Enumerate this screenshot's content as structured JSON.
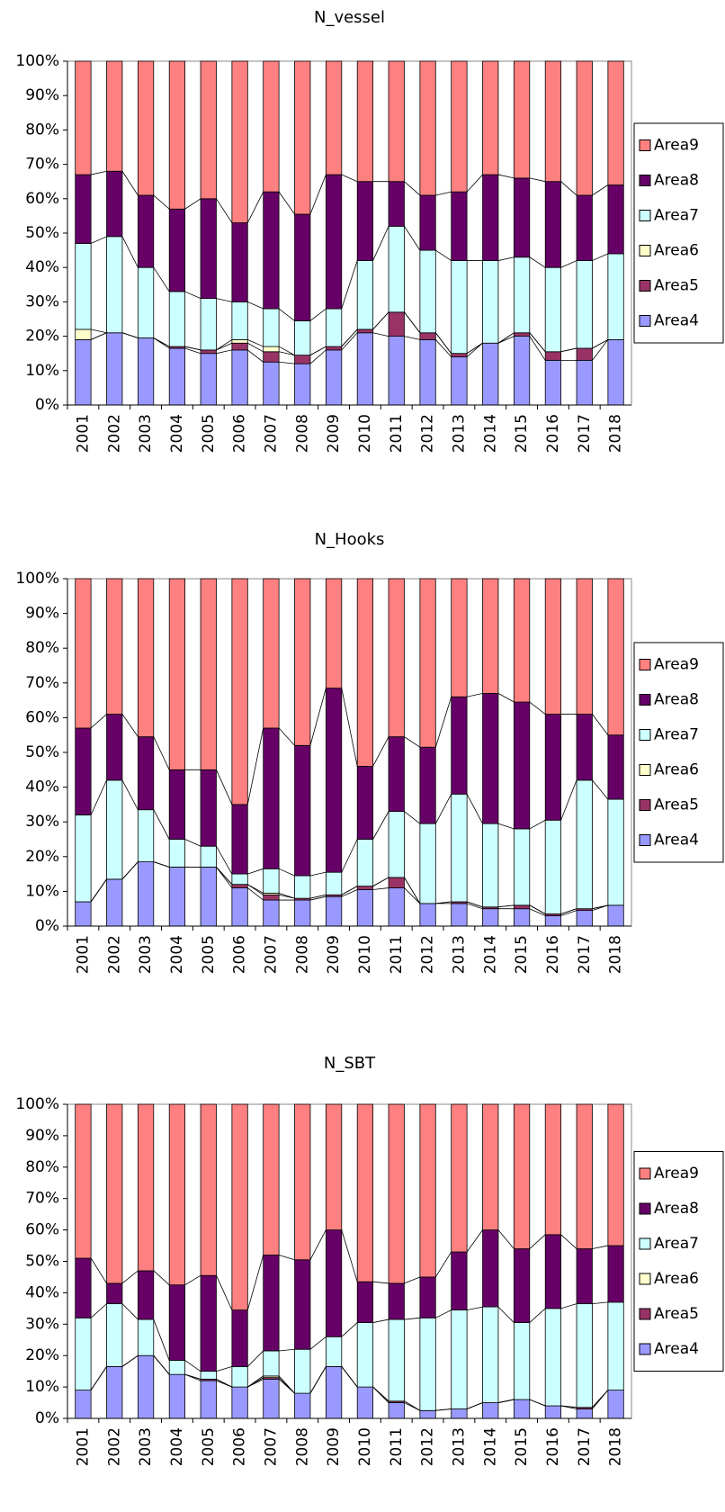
{
  "chart_data": [
    {
      "type": "bar",
      "stacked": true,
      "title": "N_vessel",
      "categories": [
        "2001",
        "2002",
        "2003",
        "2004",
        "2005",
        "2006",
        "2007",
        "2008",
        "2009",
        "2010",
        "2011",
        "2012",
        "2013",
        "2014",
        "2015",
        "2016",
        "2017",
        "2018"
      ],
      "series": [
        {
          "name": "Area4",
          "color": "#9999ff",
          "values": [
            19,
            21,
            19.5,
            16.5,
            15,
            16,
            12.5,
            12,
            16,
            21,
            20,
            19,
            14,
            18,
            20,
            13,
            13,
            19
          ]
        },
        {
          "name": "Area5",
          "color": "#993366",
          "values": [
            0,
            0,
            0,
            0.5,
            1,
            2,
            3,
            2.5,
            1,
            1,
            7,
            2,
            1,
            0,
            1,
            2.5,
            3.5,
            0
          ]
        },
        {
          "name": "Area6",
          "color": "#ffffcc",
          "values": [
            3,
            0,
            0,
            0,
            0,
            1,
            1.5,
            0,
            0,
            0,
            0,
            0,
            0,
            0,
            0,
            0,
            0,
            0
          ]
        },
        {
          "name": "Area7",
          "color": "#ccffff",
          "values": [
            25,
            28,
            20.5,
            16,
            15,
            11,
            11,
            10,
            11,
            20,
            25,
            24,
            27,
            24,
            22,
            24.5,
            25.5,
            25
          ]
        },
        {
          "name": "Area8",
          "color": "#660066",
          "values": [
            20,
            19,
            21,
            24,
            29,
            23,
            34,
            31,
            39,
            23,
            13,
            16,
            20,
            25,
            23,
            25,
            19,
            20
          ]
        },
        {
          "name": "Area9",
          "color": "#ff8080",
          "values": [
            33,
            32,
            39,
            43,
            40,
            47,
            38,
            44.5,
            33,
            35,
            35,
            39,
            38,
            33,
            34,
            35,
            39,
            36
          ]
        }
      ],
      "ylim": [
        0,
        100
      ],
      "yticks": [
        {
          "value": 0,
          "label": "0%"
        },
        {
          "value": 10,
          "label": "10%"
        },
        {
          "value": 20,
          "label": "20%"
        },
        {
          "value": 30,
          "label": "30%"
        },
        {
          "value": 40,
          "label": "40%"
        },
        {
          "value": 50,
          "label": "50%"
        },
        {
          "value": 60,
          "label": "60%"
        },
        {
          "value": 70,
          "label": "70%"
        },
        {
          "value": 80,
          "label": "80%"
        },
        {
          "value": 90,
          "label": "90%"
        },
        {
          "value": 100,
          "label": "100%"
        }
      ]
    },
    {
      "type": "bar",
      "stacked": true,
      "title": "N_Hooks",
      "categories": [
        "2001",
        "2002",
        "2003",
        "2004",
        "2005",
        "2006",
        "2007",
        "2008",
        "2009",
        "2010",
        "2011",
        "2012",
        "2013",
        "2014",
        "2015",
        "2016",
        "2017",
        "2018"
      ],
      "series": [
        {
          "name": "Area4",
          "color": "#9999ff",
          "values": [
            7,
            13.5,
            18.5,
            17,
            17,
            11,
            7.5,
            7.5,
            8.5,
            10.5,
            11,
            6.5,
            6.5,
            5,
            5,
            3,
            4.5,
            6
          ]
        },
        {
          "name": "Area5",
          "color": "#993366",
          "values": [
            0,
            0,
            0,
            0,
            0,
            1,
            1.5,
            0.5,
            0.5,
            1,
            3,
            0,
            0.5,
            0.5,
            1,
            0.5,
            0.5,
            0
          ]
        },
        {
          "name": "Area6",
          "color": "#ffffcc",
          "values": [
            0,
            0,
            0,
            0,
            0,
            0,
            0.5,
            0,
            0,
            0,
            0,
            0,
            0,
            0,
            0,
            0,
            0,
            0
          ]
        },
        {
          "name": "Area7",
          "color": "#ccffff",
          "values": [
            25,
            28.5,
            15,
            8,
            6,
            3,
            7,
            6.5,
            6.5,
            13.5,
            19,
            23,
            31,
            24,
            22,
            27,
            37,
            30.5
          ]
        },
        {
          "name": "Area8",
          "color": "#660066",
          "values": [
            25,
            19,
            21,
            20,
            22,
            20,
            40.5,
            37.5,
            53,
            21,
            21.5,
            22,
            28,
            37.5,
            36.5,
            30.5,
            19,
            18.5
          ]
        },
        {
          "name": "Area9",
          "color": "#ff8080",
          "values": [
            43,
            39,
            45.5,
            55,
            55,
            65,
            43,
            48,
            31.5,
            54,
            45.5,
            48.5,
            34,
            33,
            35.5,
            39,
            39,
            45
          ]
        }
      ],
      "ylim": [
        0,
        100
      ],
      "yticks": [
        {
          "value": 0,
          "label": "0%"
        },
        {
          "value": 10,
          "label": "10%"
        },
        {
          "value": 20,
          "label": "20%"
        },
        {
          "value": 30,
          "label": "30%"
        },
        {
          "value": 40,
          "label": "40%"
        },
        {
          "value": 50,
          "label": "50%"
        },
        {
          "value": 60,
          "label": "60%"
        },
        {
          "value": 70,
          "label": "70%"
        },
        {
          "value": 80,
          "label": "80%"
        },
        {
          "value": 90,
          "label": "90%"
        },
        {
          "value": 100,
          "label": "100%"
        }
      ]
    },
    {
      "type": "bar",
      "stacked": true,
      "title": "N_SBT",
      "categories": [
        "2001",
        "2002",
        "2003",
        "2004",
        "2005",
        "2006",
        "2007",
        "2008",
        "2009",
        "2010",
        "2011",
        "2012",
        "2013",
        "2014",
        "2015",
        "2016",
        "2017",
        "2018"
      ],
      "series": [
        {
          "name": "Area4",
          "color": "#9999ff",
          "values": [
            9,
            16.5,
            20,
            14,
            12,
            10,
            12.5,
            8,
            16.5,
            10,
            5,
            2.5,
            3,
            5,
            6,
            4,
            3,
            9
          ]
        },
        {
          "name": "Area5",
          "color": "#993366",
          "values": [
            0,
            0,
            0,
            0,
            0.5,
            0,
            0.5,
            0,
            0,
            0,
            0.5,
            0,
            0,
            0,
            0,
            0,
            0.5,
            0
          ]
        },
        {
          "name": "Area6",
          "color": "#ffffcc",
          "values": [
            0,
            0,
            0,
            0,
            0,
            0,
            0.5,
            0,
            0,
            0,
            0,
            0,
            0,
            0,
            0,
            0,
            0,
            0
          ]
        },
        {
          "name": "Area7",
          "color": "#ccffff",
          "values": [
            23,
            20,
            11.5,
            4.5,
            2.5,
            6.5,
            8,
            14,
            9.5,
            20.5,
            26,
            29.5,
            31.5,
            30.5,
            24.5,
            31,
            33,
            28
          ]
        },
        {
          "name": "Area8",
          "color": "#660066",
          "values": [
            19,
            6.5,
            15.5,
            24,
            30.5,
            18,
            30.5,
            28.5,
            34,
            13,
            11.5,
            13,
            18.5,
            24.5,
            23.5,
            23.5,
            17.5,
            18
          ]
        },
        {
          "name": "Area9",
          "color": "#ff8080",
          "values": [
            49,
            57,
            53,
            57.5,
            54.5,
            65.5,
            48,
            49.5,
            40,
            56.5,
            57,
            55,
            47,
            40,
            46,
            41.5,
            46,
            45
          ]
        }
      ],
      "ylim": [
        0,
        100
      ],
      "yticks": [
        {
          "value": 0,
          "label": "0%"
        },
        {
          "value": 10,
          "label": "10%"
        },
        {
          "value": 20,
          "label": "20%"
        },
        {
          "value": 30,
          "label": "30%"
        },
        {
          "value": 40,
          "label": "40%"
        },
        {
          "value": 50,
          "label": "50%"
        },
        {
          "value": 60,
          "label": "60%"
        },
        {
          "value": 70,
          "label": "70%"
        },
        {
          "value": 80,
          "label": "80%"
        },
        {
          "value": 90,
          "label": "90%"
        },
        {
          "value": 100,
          "label": "100%"
        }
      ]
    }
  ]
}
